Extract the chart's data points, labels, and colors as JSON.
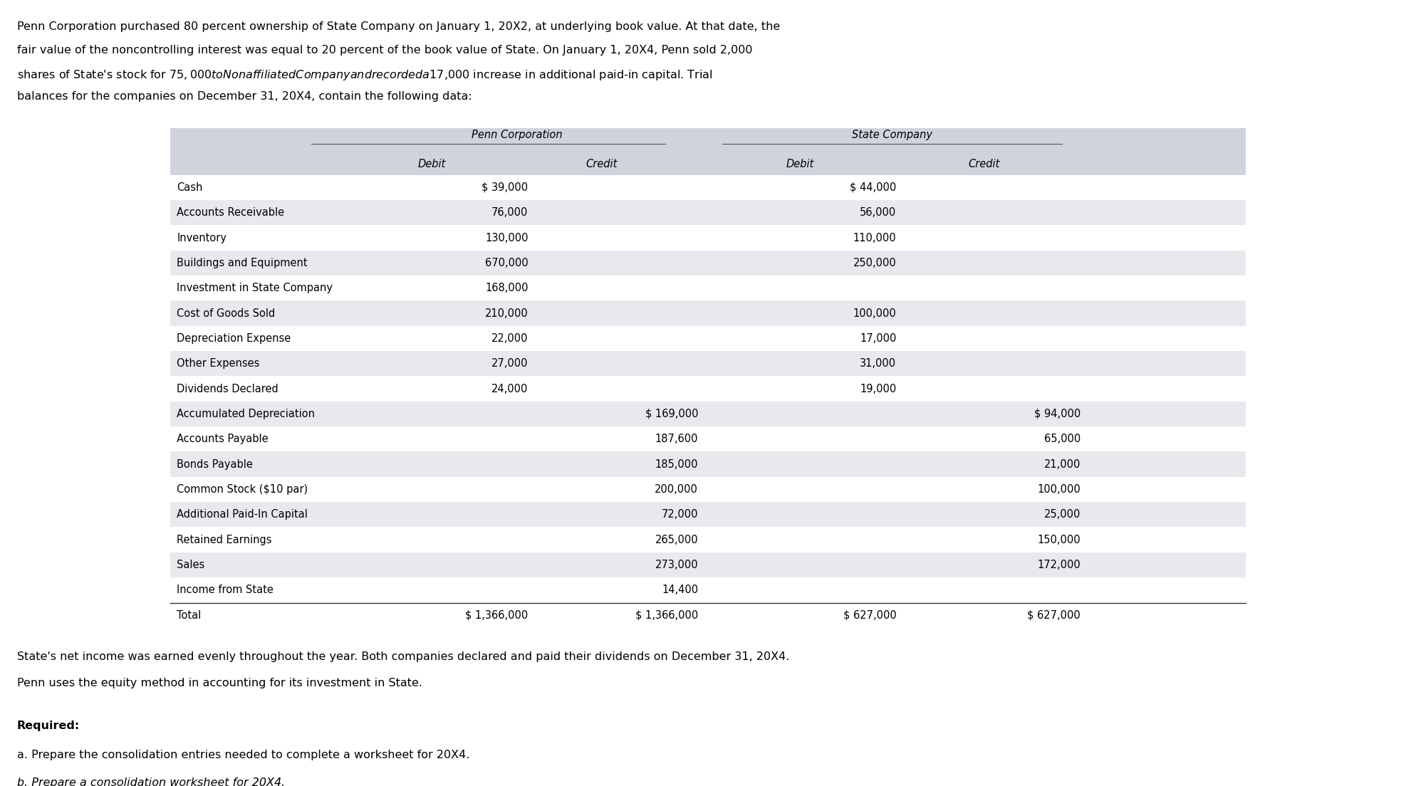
{
  "intro_lines": [
    "Penn Corporation purchased 80 percent ownership of State Company on January 1, 20X2, at underlying book value. At that date, the",
    "fair value of the noncontrolling interest was equal to 20 percent of the book value of State. On January 1, 20X4, Penn sold 2,000",
    "shares of State's stock for $75,000 to Nonaffiliated Company and recorded a $17,000 increase in additional paid-in capital. Trial",
    "balances for the companies on December 31, 20X4, contain the following data:"
  ],
  "header_group1": "Penn Corporation",
  "header_group2": "State Company",
  "col_headers": [
    "Debit",
    "Credit",
    "Debit",
    "Credit"
  ],
  "rows": [
    {
      "label": "Cash",
      "pc_debit": "$ 39,000",
      "pc_credit": "",
      "sc_debit": "$ 44,000",
      "sc_credit": ""
    },
    {
      "label": "Accounts Receivable",
      "pc_debit": "76,000",
      "pc_credit": "",
      "sc_debit": "56,000",
      "sc_credit": ""
    },
    {
      "label": "Inventory",
      "pc_debit": "130,000",
      "pc_credit": "",
      "sc_debit": "110,000",
      "sc_credit": ""
    },
    {
      "label": "Buildings and Equipment",
      "pc_debit": "670,000",
      "pc_credit": "",
      "sc_debit": "250,000",
      "sc_credit": ""
    },
    {
      "label": "Investment in State Company",
      "pc_debit": "168,000",
      "pc_credit": "",
      "sc_debit": "",
      "sc_credit": ""
    },
    {
      "label": "Cost of Goods Sold",
      "pc_debit": "210,000",
      "pc_credit": "",
      "sc_debit": "100,000",
      "sc_credit": ""
    },
    {
      "label": "Depreciation Expense",
      "pc_debit": "22,000",
      "pc_credit": "",
      "sc_debit": "17,000",
      "sc_credit": ""
    },
    {
      "label": "Other Expenses",
      "pc_debit": "27,000",
      "pc_credit": "",
      "sc_debit": "31,000",
      "sc_credit": ""
    },
    {
      "label": "Dividends Declared",
      "pc_debit": "24,000",
      "pc_credit": "",
      "sc_debit": "19,000",
      "sc_credit": ""
    },
    {
      "label": "Accumulated Depreciation",
      "pc_debit": "",
      "pc_credit": "$ 169,000",
      "sc_debit": "",
      "sc_credit": "$ 94,000"
    },
    {
      "label": "Accounts Payable",
      "pc_debit": "",
      "pc_credit": "187,600",
      "sc_debit": "",
      "sc_credit": "65,000"
    },
    {
      "label": "Bonds Payable",
      "pc_debit": "",
      "pc_credit": "185,000",
      "sc_debit": "",
      "sc_credit": "21,000"
    },
    {
      "label": "Common Stock ($10 par)",
      "pc_debit": "",
      "pc_credit": "200,000",
      "sc_debit": "",
      "sc_credit": "100,000"
    },
    {
      "label": "Additional Paid-In Capital",
      "pc_debit": "",
      "pc_credit": "72,000",
      "sc_debit": "",
      "sc_credit": "25,000"
    },
    {
      "label": "Retained Earnings",
      "pc_debit": "",
      "pc_credit": "265,000",
      "sc_debit": "",
      "sc_credit": "150,000"
    },
    {
      "label": "Sales",
      "pc_debit": "",
      "pc_credit": "273,000",
      "sc_debit": "",
      "sc_credit": "172,000"
    },
    {
      "label": "Income from State",
      "pc_debit": "",
      "pc_credit": "14,400",
      "sc_debit": "",
      "sc_credit": ""
    }
  ],
  "total_row": {
    "label": "Total",
    "pc_debit": "$ 1,366,000",
    "pc_credit": "$ 1,366,000",
    "sc_debit": "$ 627,000",
    "sc_credit": "$ 627,000"
  },
  "footer_text1": "State's net income was earned evenly throughout the year. Both companies declared and paid their dividends on December 31, 20X4.",
  "footer_text2": "Penn uses the equity method in accounting for its investment in State.",
  "required_label": "Required:",
  "req_a": "a. Prepare the consolidation entries needed to complete a worksheet for 20X4.",
  "req_b": "b. Prepare a consolidation worksheet for 20X4.",
  "bg_color": "#ffffff",
  "header_bg": "#d0d3dc",
  "row_bg_odd": "#ffffff",
  "row_bg_even": "#e8e9ed",
  "font_size_intro": 11.5,
  "font_size_table": 10.5,
  "font_size_footer": 11.5,
  "font_size_required": 11.5
}
